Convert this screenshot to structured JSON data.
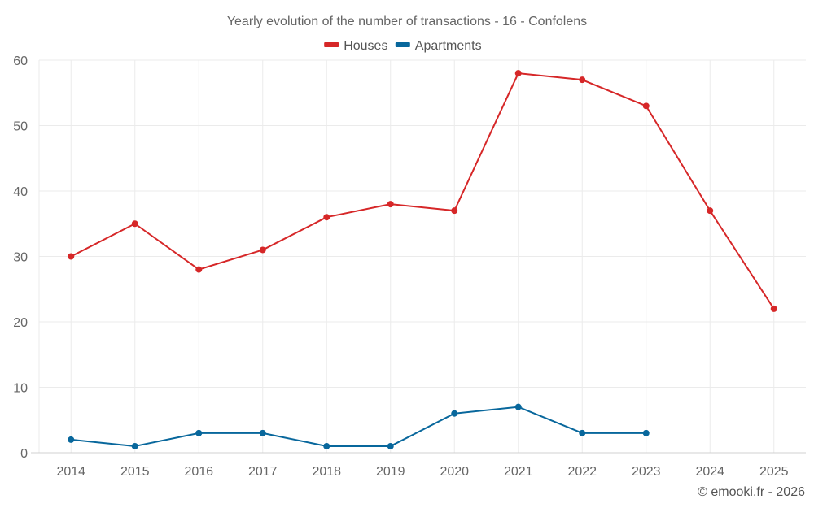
{
  "chart_data": {
    "type": "line",
    "title": "Yearly evolution of the number of transactions - 16 - Confolens",
    "xlabel": "",
    "ylabel": "",
    "categories": [
      "2014",
      "2015",
      "2016",
      "2017",
      "2018",
      "2019",
      "2020",
      "2021",
      "2022",
      "2023",
      "2024",
      "2025"
    ],
    "ylim": [
      0,
      60
    ],
    "yticks": [
      0,
      10,
      20,
      30,
      40,
      50,
      60
    ],
    "grid": true,
    "legend_position": "top-center",
    "series": [
      {
        "name": "Houses",
        "color": "#d62728",
        "values": [
          30,
          35,
          28,
          31,
          36,
          38,
          37,
          58,
          57,
          53,
          37,
          22
        ]
      },
      {
        "name": "Apartments",
        "color": "#08679c",
        "values": [
          2,
          1,
          3,
          3,
          1,
          1,
          6,
          7,
          3,
          3,
          null,
          null
        ]
      }
    ],
    "credit": "© emooki.fr - 2026"
  }
}
